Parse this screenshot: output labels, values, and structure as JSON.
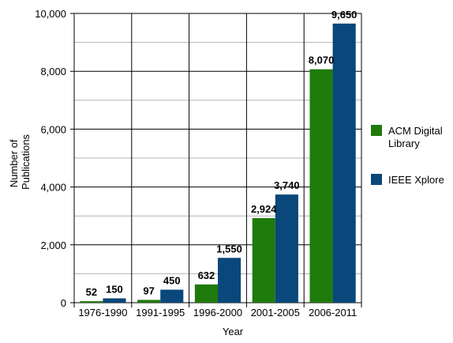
{
  "chart_data": {
    "type": "bar",
    "categories": [
      "1976-1990",
      "1991-1995",
      "1996-2000",
      "2001-2005",
      "2006-2011"
    ],
    "series": [
      {
        "name": "ACM Digital Library",
        "legend_lines": [
          "ACM Digital",
          "Library"
        ],
        "color": "#1f7a0c",
        "values": [
          52,
          97,
          632,
          2924,
          8070
        ],
        "labels": [
          "52",
          "97",
          "632",
          "2,924",
          "8,070"
        ]
      },
      {
        "name": "IEEE Xplore",
        "legend_lines": [
          "IEEE Xplore"
        ],
        "color": "#0a477a",
        "values": [
          150,
          450,
          1550,
          3740,
          9650
        ],
        "labels": [
          "150",
          "450",
          "1,550",
          "3,740",
          "9,650"
        ]
      }
    ],
    "xlabel": "Year",
    "ylabel_lines": [
      "Number of",
      "Publications"
    ],
    "ylim": [
      0,
      10000
    ],
    "yticks": [
      0,
      2000,
      4000,
      6000,
      8000,
      10000
    ],
    "ytick_labels": [
      "0",
      "2,000",
      "4,000",
      "6,000",
      "8,000",
      "10,000"
    ],
    "minor_gridlines": [
      1000,
      3000,
      5000,
      7000,
      9000
    ],
    "grid": true,
    "legend_position": "right"
  }
}
